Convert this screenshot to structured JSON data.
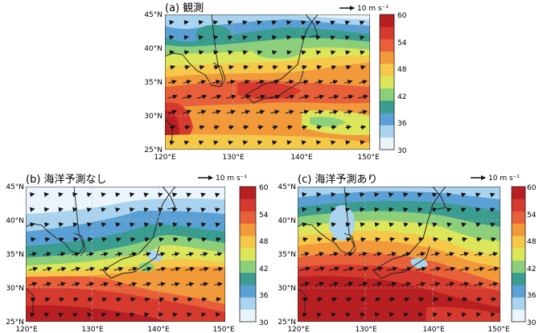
{
  "figure": {
    "panels": [
      {
        "id": "a",
        "title": "(a) 観測",
        "lat_labels": [
          "45°N",
          "40°N",
          "35°N",
          "30°N",
          "25°N"
        ],
        "lon_labels": [
          "120°E",
          "130°E",
          "140°E",
          "150°E"
        ],
        "colorbar_ticks": [
          "60",
          "54",
          "48",
          "42",
          "36",
          "30"
        ],
        "wind_key": "10 m s⁻¹"
      },
      {
        "id": "b",
        "title": "(b) 海洋予測なし",
        "lat_labels": [
          "45°N",
          "40°N",
          "35°N",
          "30°N",
          "25°N"
        ],
        "lon_labels": [
          "120°E",
          "130°E",
          "140°E",
          "150°E"
        ],
        "colorbar_ticks": [
          "60",
          "54",
          "48",
          "42",
          "36",
          "30"
        ],
        "wind_key": "10 m s⁻¹"
      },
      {
        "id": "c",
        "title": "(c) 海洋予測あり",
        "lat_labels": [
          "45°N",
          "40°N",
          "35°N",
          "30°N",
          "25°N"
        ],
        "lon_labels": [
          "120°E",
          "130°E",
          "140°E",
          "150°E"
        ],
        "colorbar_ticks": [
          "60",
          "54",
          "48",
          "42",
          "36",
          "30"
        ],
        "wind_key": "10 m s⁻¹"
      }
    ],
    "color_scale": {
      "min": 30,
      "max": 60,
      "step": 3,
      "colors": [
        "#eaf5fb",
        "#a9d3ee",
        "#5aa0d4",
        "#3a9d8f",
        "#8ccf7a",
        "#dbe65a",
        "#f6c84a",
        "#f29a3a",
        "#e8603a",
        "#d63a2e",
        "#b81f22"
      ]
    },
    "map_extent": {
      "lon": [
        120,
        150
      ],
      "lat": [
        25,
        45
      ]
    }
  }
}
